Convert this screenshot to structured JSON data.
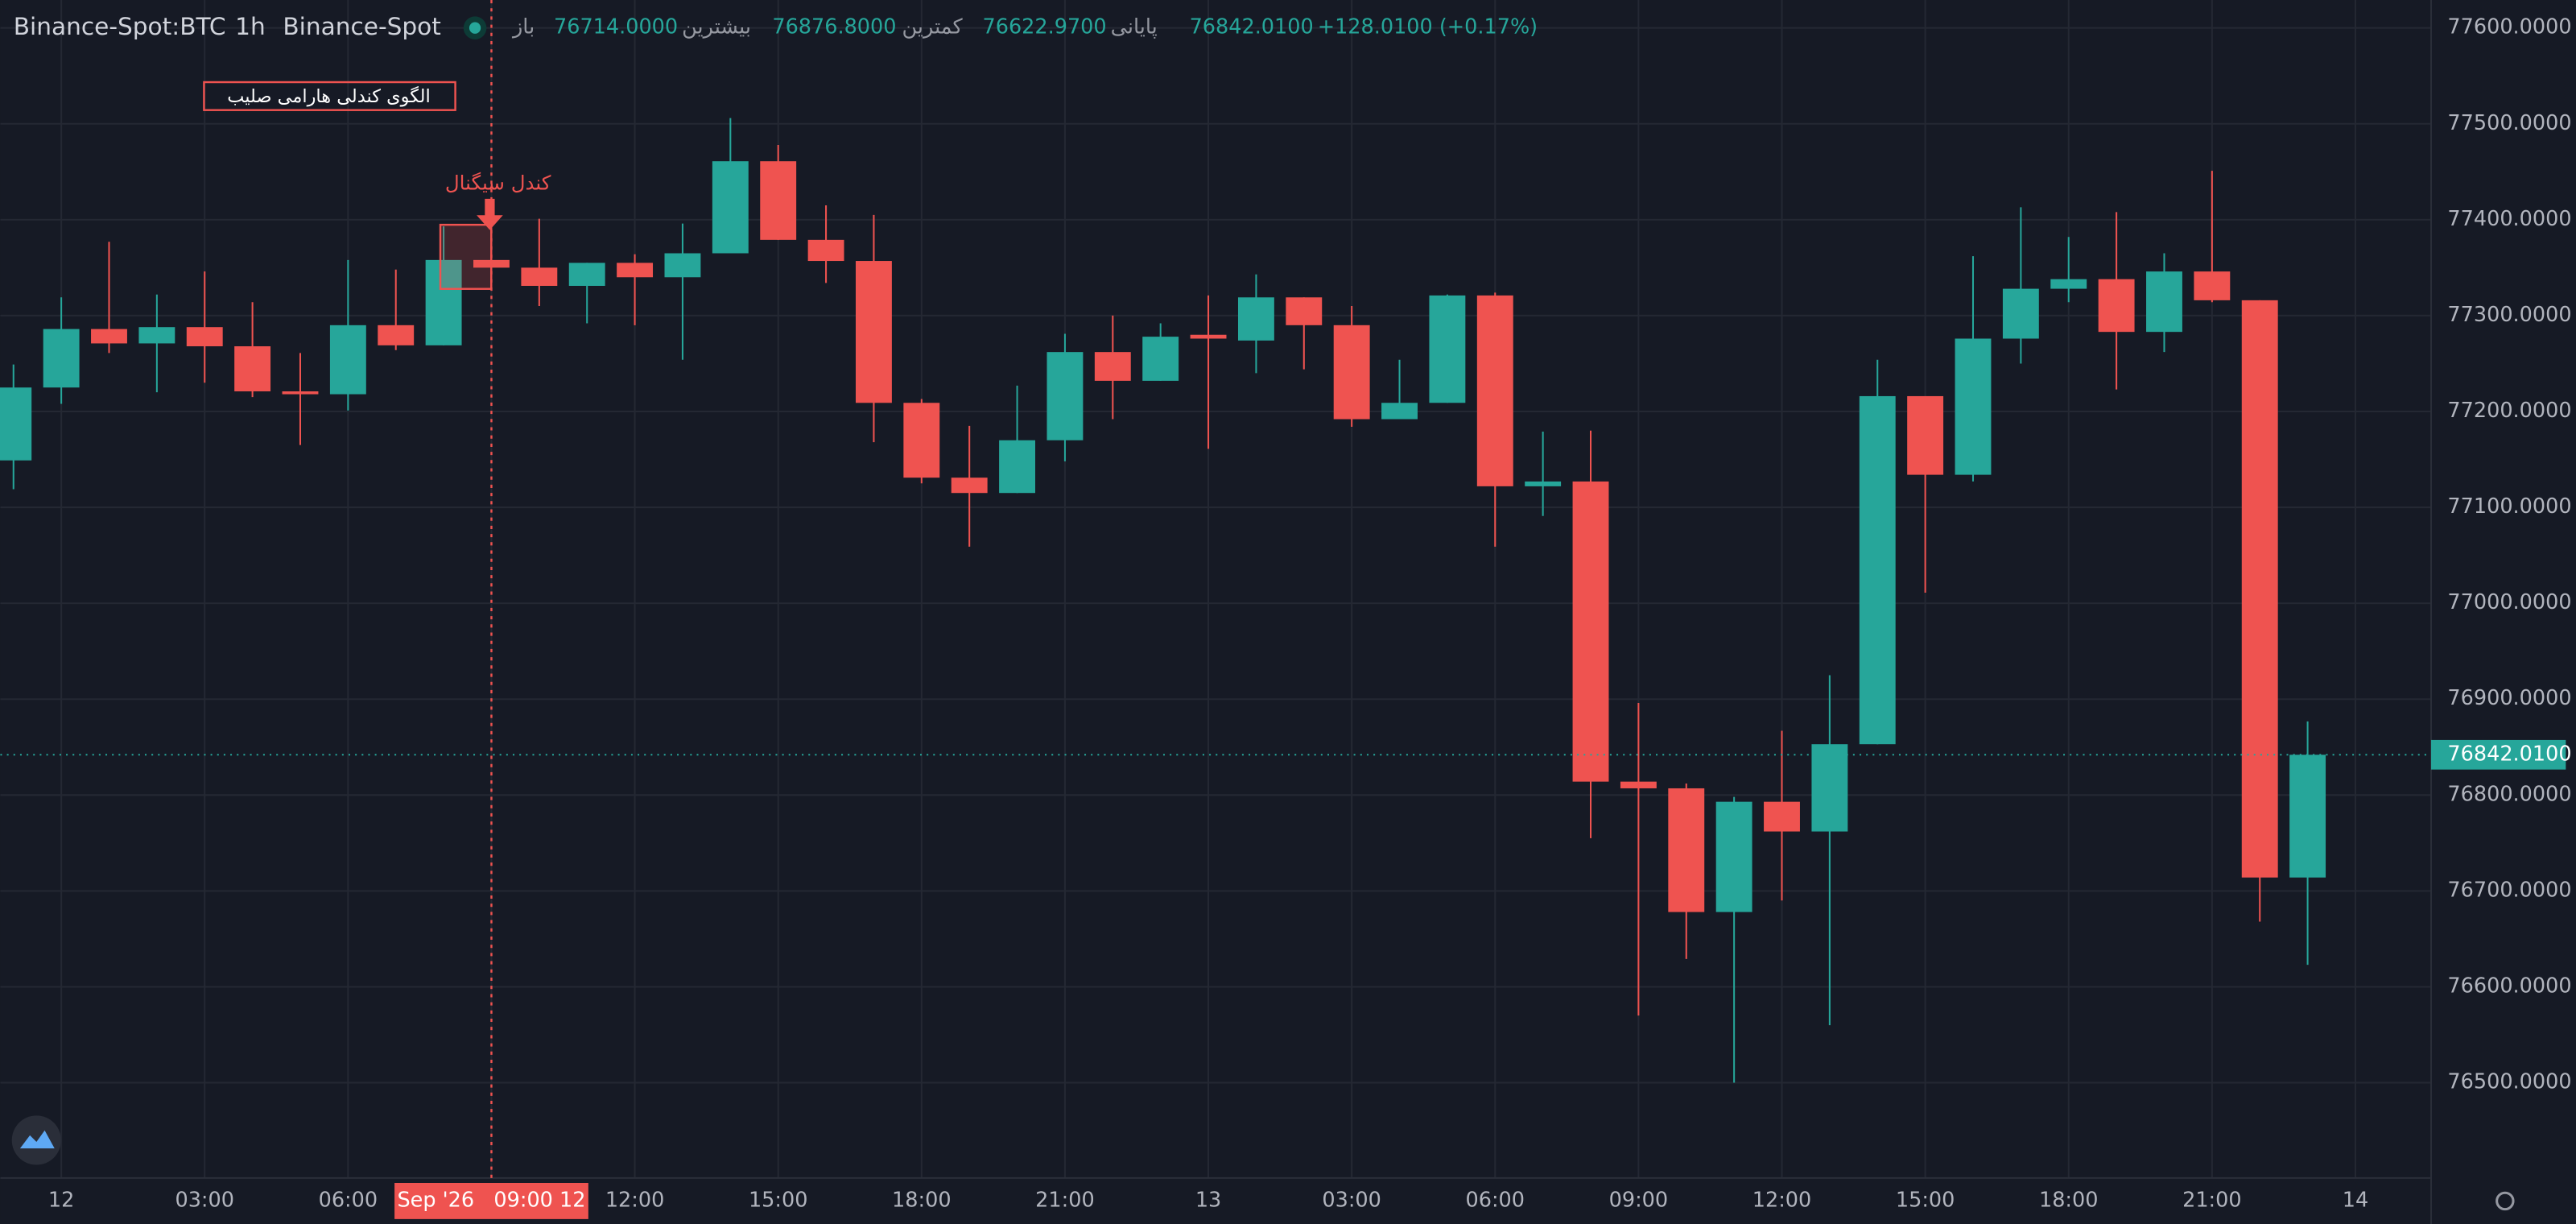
{
  "header": {
    "symbol": "Binance-Spot:BTC",
    "interval": "1h",
    "exchange": "Binance-Spot",
    "open_label": "باز",
    "open": "76714.0000",
    "high_label": "بیشترین",
    "high": "76876.8000",
    "low_label": "کمترین",
    "low": "76622.9700",
    "close_label": "پایانی",
    "close": "76842.0100",
    "change": "+128.0100 (+0.17%)"
  },
  "chart_data": {
    "type": "candlestick",
    "up_color": "#26a69a",
    "down_color": "#ef5350",
    "open": [
      77149,
      77225,
      77286,
      77271,
      77288,
      77268,
      77221,
      77218,
      77290,
      77269,
      77358,
      77350,
      77331,
      77355,
      77340,
      77365,
      77461,
      77379,
      77357,
      77209,
      77131,
      77115,
      77170,
      77262,
      77232,
      77280,
      77274,
      77319,
      77290,
      77192,
      77209,
      77321,
      77122,
      77127,
      76814,
      76807,
      76678,
      76793,
      76762,
      76853,
      77216,
      77134,
      77276,
      77328,
      77338,
      77283,
      77346,
      77316,
      76714
    ],
    "high": [
      77249,
      77319,
      77377,
      77322,
      77346,
      77314,
      77261,
      77358,
      77348,
      77393,
      77386,
      77401,
      77355,
      77364,
      77396,
      77506,
      77478,
      77415,
      77405,
      77213,
      77185,
      77227,
      77281,
      77300,
      77292,
      77321,
      77343,
      77319,
      77310,
      77254,
      77322,
      77324,
      77179,
      77180,
      76896,
      76812,
      76798,
      76867,
      76925,
      77254,
      77216,
      77362,
      77413,
      77382,
      77408,
      77365,
      77451,
      77316,
      76876.8
    ],
    "low": [
      77119,
      77208,
      77261,
      77220,
      77230,
      77215,
      77165,
      77201,
      77264,
      77269,
      77345,
      77310,
      77292,
      77290,
      77254,
      77365,
      77379,
      77334,
      77168,
      77125,
      77059,
      77115,
      77148,
      77192,
      77232,
      77161,
      77240,
      77244,
      77184,
      77192,
      77209,
      77059,
      77091,
      76755,
      76570,
      76629,
      76500,
      76690,
      76560,
      76853,
      77011,
      77127,
      77250,
      77314,
      77223,
      77262,
      77314,
      76668,
      76622.97
    ],
    "close": [
      77225,
      77286,
      77271,
      77288,
      77268,
      77221,
      77218,
      77290,
      77269,
      77358,
      77350,
      77331,
      77355,
      77340,
      77365,
      77461,
      77379,
      77357,
      77209,
      77131,
      77115,
      77170,
      77262,
      77232,
      77278,
      77276,
      77319,
      77290,
      77192,
      77209,
      77321,
      77122,
      77127,
      76814,
      76807,
      76678,
      76793,
      76762,
      76853,
      77216,
      77134,
      77276,
      77328,
      77338,
      77283,
      77346,
      77316,
      76714,
      76842.01
    ],
    "x_labels": [
      "12",
      "03:00",
      "06:00",
      null,
      "12:00",
      "15:00",
      "18:00",
      "21:00",
      "13",
      "03:00",
      "06:00",
      "09:00",
      "12:00",
      "15:00",
      "18:00",
      "21:00",
      "14"
    ],
    "crosshair_label": "Sep '26   09:00 12",
    "ylim": [
      76420,
      77625
    ],
    "yticks": [
      {
        "value": 76500,
        "label": "76500.0000"
      },
      {
        "value": 76600,
        "label": "76600.0000"
      },
      {
        "value": 76700,
        "label": "76700.0000"
      },
      {
        "value": 76800,
        "label": "76800.0000"
      },
      {
        "value": 76900,
        "label": "76900.0000"
      },
      {
        "value": 77000,
        "label": "77000.0000"
      },
      {
        "value": 77100,
        "label": "77100.0000"
      },
      {
        "value": 77200,
        "label": "77200.0000"
      },
      {
        "value": 77300,
        "label": "77300.0000"
      },
      {
        "value": 77400,
        "label": "77400.0000"
      },
      {
        "value": 77500,
        "label": "77500.0000"
      },
      {
        "value": 77600,
        "label": "77600.0000"
      }
    ],
    "price_label": {
      "value": 76842.01,
      "label": "76842.0100"
    },
    "grid": true,
    "annotations": {
      "pattern": "الگوی کندلی هارامی صلیب",
      "signal": "کندل سیگنال"
    }
  }
}
